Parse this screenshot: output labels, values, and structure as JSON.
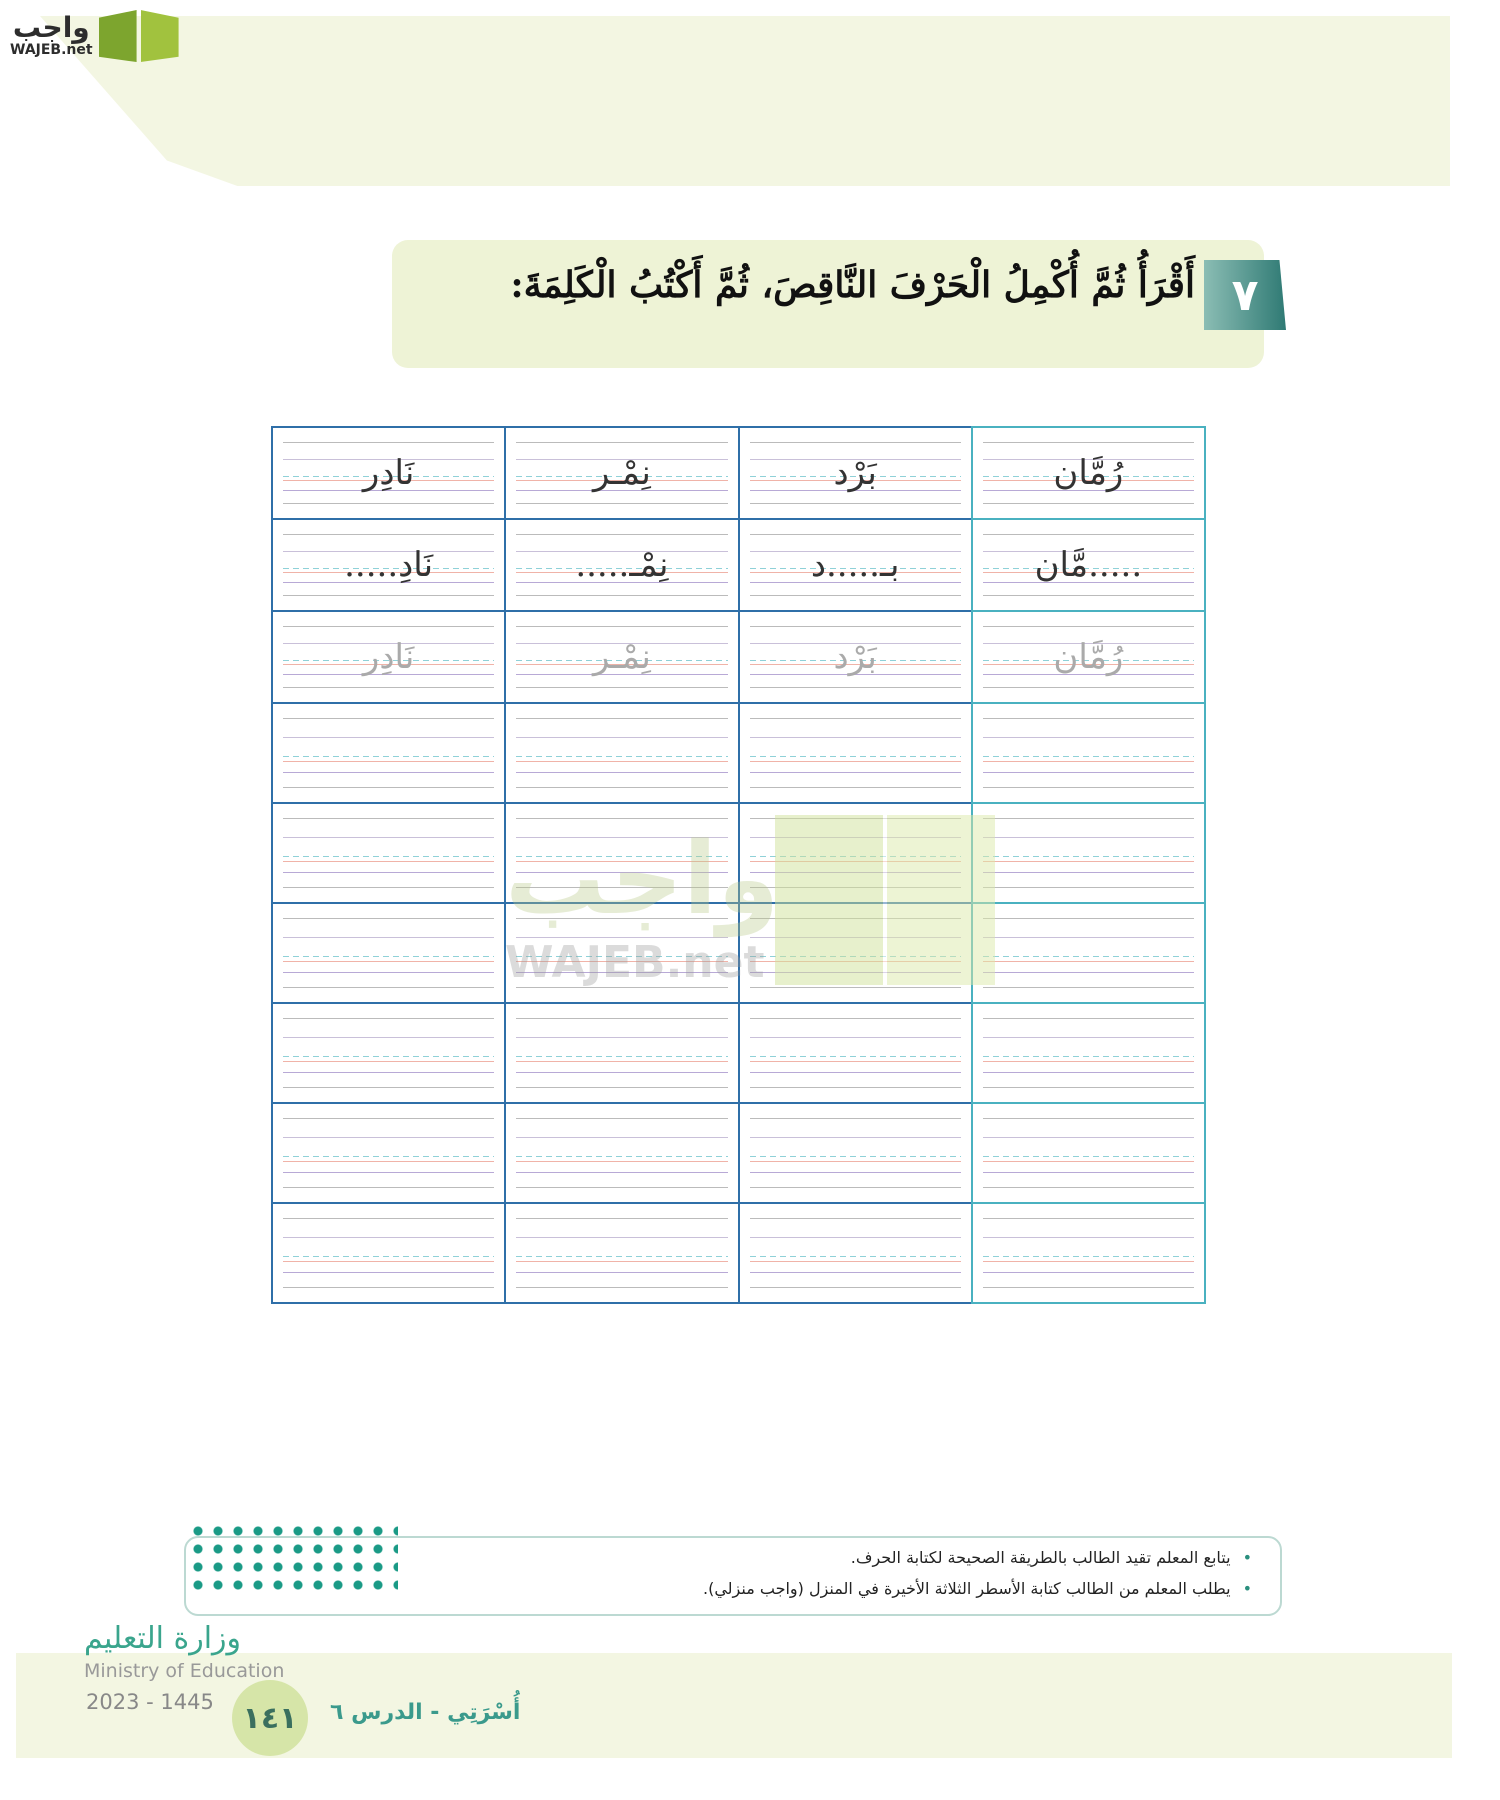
{
  "logo": {
    "text": "واجب",
    "sub": "WAJEB.net"
  },
  "question": {
    "number": "٧",
    "text": "أَقْرَأُ ثُمَّ أُكْمِلُ الْحَرْفَ النَّاقِصَ، ثُمَّ أَكْتُبُ الْكَلِمَةَ:"
  },
  "table": {
    "rows": [
      {
        "style": "read",
        "cells": [
          "رُمَّان",
          "بَرْد",
          "نِمْـر",
          "نَادِر"
        ]
      },
      {
        "style": "complete",
        "cells": [
          ".....مَّان",
          "بـ.....د",
          "نِمْـ.....",
          "نَادِ....."
        ]
      },
      {
        "style": "trace",
        "cells": [
          "رُمَّان",
          "بَرْد",
          "نِمْـر",
          "نَادِر"
        ]
      }
    ],
    "empty_rows": 6
  },
  "watermark": {
    "text": "واجب",
    "sub": "WAJEB.net"
  },
  "notes": [
    "يتابع المعلم تقيد الطالب بالطريقة الصحيحة لكتابة الحرف.",
    "يطلب المعلم من الطالب كتابة الأسطر الثلاثة الأخيرة في المنزل (واجب منزلي)."
  ],
  "footer": {
    "page": "١٤١",
    "ministry_ar": "وزارة التعليم",
    "ministry_en": "Ministry of Education",
    "year": "2023 - 1445",
    "lesson": "أُسْرَتِي - الدرس ٦"
  },
  "colors": {
    "accent": "#2f7a74",
    "table_border": "#2f6fa8",
    "band": "#f3f6e2"
  }
}
